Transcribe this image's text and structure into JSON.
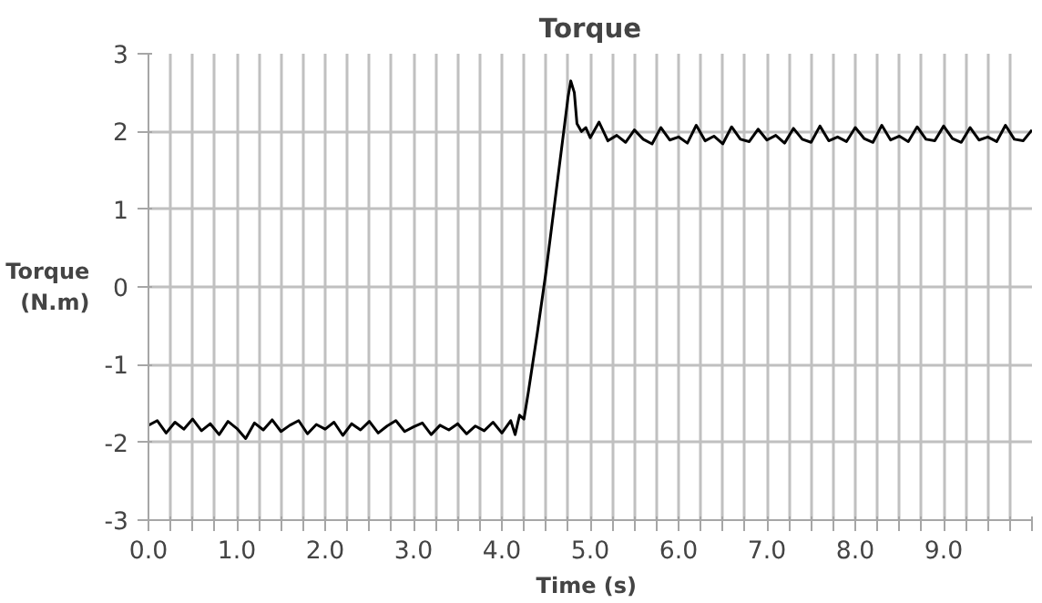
{
  "chart_data": {
    "type": "line",
    "title": "Torque",
    "xlabel": "Time  (s)",
    "ylabel": "Torque\n(N.m)",
    "xlim": [
      0,
      10
    ],
    "ylim": [
      -3,
      3
    ],
    "xticks": [
      {
        "value": 0,
        "label": "0.0"
      },
      {
        "value": 0.25,
        "label": null
      },
      {
        "value": 0.5,
        "label": null
      },
      {
        "value": 0.75,
        "label": null
      },
      {
        "value": 1,
        "label": "1.0"
      },
      {
        "value": 1.25,
        "label": null
      },
      {
        "value": 1.5,
        "label": null
      },
      {
        "value": 1.75,
        "label": null
      },
      {
        "value": 2,
        "label": "2.0"
      },
      {
        "value": 2.25,
        "label": null
      },
      {
        "value": 2.5,
        "label": null
      },
      {
        "value": 2.75,
        "label": null
      },
      {
        "value": 3,
        "label": "3.0"
      },
      {
        "value": 3.25,
        "label": null
      },
      {
        "value": 3.5,
        "label": null
      },
      {
        "value": 3.75,
        "label": null
      },
      {
        "value": 4,
        "label": "4.0"
      },
      {
        "value": 4.25,
        "label": null
      },
      {
        "value": 4.5,
        "label": null
      },
      {
        "value": 4.75,
        "label": null
      },
      {
        "value": 5,
        "label": "5.0"
      },
      {
        "value": 5.25,
        "label": null
      },
      {
        "value": 5.5,
        "label": null
      },
      {
        "value": 5.75,
        "label": null
      },
      {
        "value": 6,
        "label": "6.0"
      },
      {
        "value": 6.25,
        "label": null
      },
      {
        "value": 6.5,
        "label": null
      },
      {
        "value": 6.75,
        "label": null
      },
      {
        "value": 7,
        "label": "7.0"
      },
      {
        "value": 7.25,
        "label": null
      },
      {
        "value": 7.5,
        "label": null
      },
      {
        "value": 7.75,
        "label": null
      },
      {
        "value": 8,
        "label": "8.0"
      },
      {
        "value": 8.25,
        "label": null
      },
      {
        "value": 8.5,
        "label": null
      },
      {
        "value": 8.75,
        "label": null
      },
      {
        "value": 9,
        "label": "9.0"
      },
      {
        "value": 9.25,
        "label": null
      },
      {
        "value": 9.5,
        "label": null
      },
      {
        "value": 9.75,
        "label": null
      },
      {
        "value": 10,
        "label": null
      }
    ],
    "yticks": [
      -3,
      -2,
      -1,
      0,
      1,
      2,
      3
    ],
    "grid": true,
    "marker": "none",
    "line_style": "solid",
    "series": [
      {
        "color": "#000000",
        "x": [
          0.0,
          0.1,
          0.2,
          0.3,
          0.4,
          0.5,
          0.6,
          0.7,
          0.8,
          0.9,
          1.0,
          1.1,
          1.2,
          1.3,
          1.4,
          1.5,
          1.6,
          1.7,
          1.8,
          1.9,
          2.0,
          2.1,
          2.2,
          2.3,
          2.4,
          2.5,
          2.6,
          2.7,
          2.8,
          2.9,
          3.0,
          3.1,
          3.2,
          3.3,
          3.4,
          3.5,
          3.6,
          3.7,
          3.8,
          3.9,
          4.0,
          4.1,
          4.15,
          4.2,
          4.25,
          4.3,
          4.4,
          4.5,
          4.6,
          4.7,
          4.75,
          4.78,
          4.82,
          4.85,
          4.9,
          4.95,
          5.0,
          5.1,
          5.2,
          5.3,
          5.4,
          5.5,
          5.6,
          5.7,
          5.8,
          5.9,
          6.0,
          6.1,
          6.2,
          6.3,
          6.4,
          6.5,
          6.6,
          6.7,
          6.8,
          6.9,
          7.0,
          7.1,
          7.2,
          7.3,
          7.4,
          7.5,
          7.6,
          7.7,
          7.8,
          7.9,
          8.0,
          8.1,
          8.2,
          8.3,
          8.4,
          8.5,
          8.6,
          8.7,
          8.8,
          8.9,
          9.0,
          9.1,
          9.2,
          9.3,
          9.4,
          9.5,
          9.6,
          9.7,
          9.8,
          9.9,
          10.0
        ],
        "values": [
          -1.78,
          -1.72,
          -1.88,
          -1.74,
          -1.83,
          -1.7,
          -1.85,
          -1.76,
          -1.9,
          -1.73,
          -1.82,
          -1.95,
          -1.75,
          -1.84,
          -1.71,
          -1.86,
          -1.78,
          -1.72,
          -1.89,
          -1.77,
          -1.83,
          -1.74,
          -1.91,
          -1.76,
          -1.84,
          -1.73,
          -1.88,
          -1.79,
          -1.72,
          -1.86,
          -1.8,
          -1.75,
          -1.9,
          -1.78,
          -1.84,
          -1.76,
          -1.89,
          -1.79,
          -1.85,
          -1.74,
          -1.88,
          -1.72,
          -1.9,
          -1.65,
          -1.7,
          -1.35,
          -0.6,
          0.2,
          1.1,
          2.0,
          2.45,
          2.65,
          2.5,
          2.1,
          2.0,
          2.05,
          1.92,
          2.12,
          1.88,
          1.95,
          1.86,
          2.02,
          1.9,
          1.84,
          2.05,
          1.89,
          1.93,
          1.85,
          2.08,
          1.88,
          1.94,
          1.84,
          2.06,
          1.9,
          1.87,
          2.03,
          1.89,
          1.95,
          1.85,
          2.04,
          1.9,
          1.86,
          2.07,
          1.88,
          1.93,
          1.87,
          2.05,
          1.91,
          1.86,
          2.08,
          1.89,
          1.94,
          1.87,
          2.06,
          1.9,
          1.88,
          2.07,
          1.91,
          1.86,
          2.05,
          1.89,
          1.93,
          1.87,
          2.08,
          1.9,
          1.88,
          2.02
        ]
      }
    ]
  }
}
